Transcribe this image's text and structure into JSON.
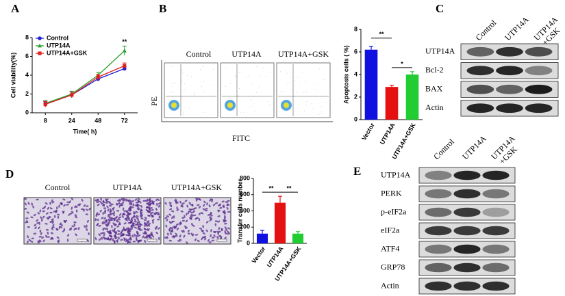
{
  "panel_labels": [
    "A",
    "B",
    "C",
    "D",
    "E"
  ],
  "chart_data": [
    {
      "type": "line",
      "y_label": "Cell viability(%)",
      "x_label": "Time( h)",
      "categories": [
        "8",
        "24",
        "48",
        "72"
      ],
      "series": [
        {
          "name": "Control",
          "color": "#1f1fd6",
          "values": [
            1.0,
            1.9,
            3.6,
            4.7
          ],
          "errors": [
            0.3,
            0.3,
            0.2,
            0.2
          ]
        },
        {
          "name": "UTP14A",
          "color": "#2ca02c",
          "values": [
            1.0,
            2.0,
            4.0,
            6.6
          ],
          "errors": [
            0.3,
            0.3,
            0.3,
            0.5
          ]
        },
        {
          "name": "UTP14A+GSK",
          "color": "#e0201e",
          "values": [
            0.9,
            1.9,
            3.8,
            5.0
          ],
          "errors": [
            0.3,
            0.3,
            0.3,
            0.3
          ]
        }
      ],
      "ylim": [
        0,
        8
      ],
      "yticks": [
        0,
        2,
        4,
        6,
        8
      ],
      "annotations": [
        "**"
      ]
    },
    {
      "type": "bar",
      "y_label": "Apoptosis cells ( %)",
      "categories": [
        "Vector",
        "UTP14A",
        "UTP14A+GSK"
      ],
      "values": [
        6.2,
        2.9,
        4.0
      ],
      "errors": [
        0.3,
        0.15,
        0.25
      ],
      "colors": [
        "#1010e0",
        "#e51010",
        "#22cc33"
      ],
      "ylim": [
        0,
        8
      ],
      "yticks": [
        0,
        2,
        4,
        6,
        8
      ],
      "annotations": [
        "**",
        "*"
      ]
    },
    {
      "type": "bar",
      "y_label": "Transfer cells number",
      "categories": [
        "Vector",
        "UTP14A",
        "UTP14A+GSK"
      ],
      "values": [
        120,
        500,
        120
      ],
      "errors": [
        40,
        80,
        25
      ],
      "colors": [
        "#1010e0",
        "#e51010",
        "#22cc33"
      ],
      "ylim": [
        0,
        800
      ],
      "yticks": [
        0,
        200,
        400,
        600,
        800
      ],
      "annotations": [
        "**",
        "**"
      ]
    }
  ],
  "flow": {
    "labels": [
      "Control",
      "UTP14A",
      "UTP14A+GSK"
    ],
    "y_label": "PE",
    "x_label": "FITC"
  },
  "blot_c": {
    "columns": [
      "Control",
      "UTP14A",
      [
        "UTP14A",
        "+GSK"
      ]
    ],
    "rows": [
      "UTP14A",
      "Bcl-2",
      "BAX",
      "Actin"
    ]
  },
  "micro": {
    "labels": [
      "Control",
      "UTP14A",
      "UTP14A+GSK"
    ]
  },
  "blot_e": {
    "columns": [
      "Control",
      "UTP14A",
      [
        "UTP14A",
        "+GSK"
      ]
    ],
    "rows": [
      "UTP14A",
      "PERK",
      "p-eIF2a",
      "eIF2a",
      "ATF4",
      "GRP78",
      "Actin"
    ]
  }
}
